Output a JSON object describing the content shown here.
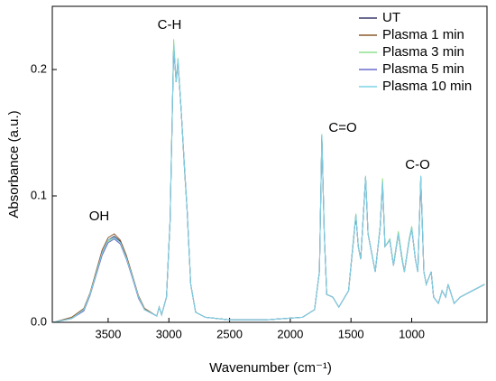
{
  "chart_data": {
    "type": "line",
    "xlabel": "Wavenumber (cm⁻¹)",
    "ylabel": "Absorbance (a.u.)",
    "annotations": [
      "OH",
      "C-H",
      "C=O",
      "C-O"
    ],
    "xlim": [
      3960,
      380
    ],
    "ylim": [
      0,
      0.25
    ],
    "xticks": [
      3500,
      3000,
      2500,
      2000,
      1500,
      1000
    ],
    "yticks": [
      {
        "value": 0,
        "label": "0.0"
      },
      0.1,
      0.2
    ],
    "legend": "upper right",
    "x": [
      3950,
      3800,
      3700,
      3650,
      3600,
      3550,
      3500,
      3450,
      3400,
      3350,
      3300,
      3250,
      3200,
      3100,
      3080,
      3060,
      3020,
      2990,
      2960,
      2940,
      2925,
      2900,
      2870,
      2850,
      2820,
      2780,
      2700,
      2500,
      2200,
      1900,
      1800,
      1760,
      1740,
      1720,
      1700,
      1650,
      1600,
      1520,
      1480,
      1460,
      1440,
      1420,
      1380,
      1360,
      1300,
      1260,
      1240,
      1220,
      1180,
      1150,
      1110,
      1080,
      1060,
      1020,
      1000,
      970,
      950,
      925,
      900,
      880,
      840,
      820,
      780,
      750,
      720,
      700,
      650,
      600,
      500,
      400
    ],
    "series": [
      {
        "name": "UT",
        "color": "#3b3b6b",
        "values": [
          0.0,
          0.003,
          0.01,
          0.022,
          0.038,
          0.055,
          0.065,
          0.068,
          0.064,
          0.052,
          0.036,
          0.02,
          0.01,
          0.005,
          0.012,
          0.006,
          0.02,
          0.08,
          0.218,
          0.19,
          0.208,
          0.17,
          0.12,
          0.09,
          0.03,
          0.008,
          0.004,
          0.002,
          0.002,
          0.004,
          0.01,
          0.04,
          0.148,
          0.07,
          0.022,
          0.02,
          0.012,
          0.025,
          0.065,
          0.085,
          0.06,
          0.05,
          0.115,
          0.07,
          0.04,
          0.075,
          0.11,
          0.06,
          0.065,
          0.045,
          0.07,
          0.05,
          0.04,
          0.065,
          0.075,
          0.05,
          0.04,
          0.115,
          0.04,
          0.03,
          0.04,
          0.02,
          0.015,
          0.025,
          0.02,
          0.03,
          0.015,
          0.02,
          0.025,
          0.03
        ]
      },
      {
        "name": "Plasma 1 min",
        "color": "#8b5a2b",
        "values": [
          0.0,
          0.004,
          0.011,
          0.023,
          0.04,
          0.057,
          0.067,
          0.07,
          0.065,
          0.053,
          0.037,
          0.021,
          0.011,
          0.005,
          0.012,
          0.006,
          0.02,
          0.08,
          0.22,
          0.19,
          0.207,
          0.17,
          0.118,
          0.09,
          0.03,
          0.008,
          0.004,
          0.002,
          0.002,
          0.004,
          0.01,
          0.04,
          0.147,
          0.07,
          0.022,
          0.02,
          0.012,
          0.025,
          0.064,
          0.085,
          0.06,
          0.05,
          0.114,
          0.07,
          0.04,
          0.075,
          0.112,
          0.06,
          0.065,
          0.045,
          0.07,
          0.05,
          0.04,
          0.066,
          0.075,
          0.05,
          0.04,
          0.114,
          0.04,
          0.03,
          0.04,
          0.02,
          0.015,
          0.025,
          0.02,
          0.03,
          0.015,
          0.02,
          0.025,
          0.03
        ]
      },
      {
        "name": "Plasma 3 min",
        "color": "#8ee08e",
        "values": [
          0.0,
          0.003,
          0.01,
          0.022,
          0.038,
          0.054,
          0.064,
          0.067,
          0.063,
          0.051,
          0.035,
          0.02,
          0.01,
          0.005,
          0.012,
          0.006,
          0.02,
          0.082,
          0.224,
          0.19,
          0.209,
          0.17,
          0.12,
          0.09,
          0.03,
          0.008,
          0.004,
          0.002,
          0.002,
          0.004,
          0.01,
          0.04,
          0.149,
          0.07,
          0.022,
          0.02,
          0.012,
          0.025,
          0.066,
          0.086,
          0.06,
          0.05,
          0.116,
          0.07,
          0.04,
          0.076,
          0.114,
          0.06,
          0.066,
          0.046,
          0.072,
          0.052,
          0.04,
          0.066,
          0.076,
          0.05,
          0.04,
          0.116,
          0.04,
          0.03,
          0.04,
          0.02,
          0.015,
          0.025,
          0.02,
          0.03,
          0.015,
          0.02,
          0.025,
          0.03
        ]
      },
      {
        "name": "Plasma 5 min",
        "color": "#6a6acd",
        "values": [
          0.0,
          0.003,
          0.009,
          0.021,
          0.037,
          0.053,
          0.063,
          0.066,
          0.062,
          0.05,
          0.035,
          0.019,
          0.01,
          0.005,
          0.012,
          0.006,
          0.02,
          0.08,
          0.219,
          0.19,
          0.206,
          0.17,
          0.12,
          0.09,
          0.03,
          0.008,
          0.004,
          0.002,
          0.002,
          0.004,
          0.01,
          0.04,
          0.146,
          0.07,
          0.022,
          0.02,
          0.012,
          0.025,
          0.065,
          0.084,
          0.06,
          0.05,
          0.115,
          0.07,
          0.04,
          0.075,
          0.11,
          0.06,
          0.065,
          0.045,
          0.07,
          0.05,
          0.04,
          0.065,
          0.074,
          0.05,
          0.04,
          0.115,
          0.04,
          0.03,
          0.04,
          0.02,
          0.015,
          0.025,
          0.02,
          0.03,
          0.015,
          0.02,
          0.025,
          0.03
        ]
      },
      {
        "name": "Plasma 10 min",
        "color": "#7fd4e6",
        "values": [
          0.0,
          0.003,
          0.01,
          0.022,
          0.038,
          0.055,
          0.065,
          0.067,
          0.063,
          0.051,
          0.036,
          0.02,
          0.01,
          0.005,
          0.012,
          0.006,
          0.02,
          0.08,
          0.22,
          0.19,
          0.208,
          0.17,
          0.12,
          0.09,
          0.03,
          0.008,
          0.004,
          0.002,
          0.002,
          0.004,
          0.01,
          0.04,
          0.148,
          0.07,
          0.022,
          0.02,
          0.012,
          0.025,
          0.065,
          0.085,
          0.06,
          0.05,
          0.115,
          0.07,
          0.04,
          0.075,
          0.111,
          0.06,
          0.065,
          0.045,
          0.07,
          0.05,
          0.04,
          0.065,
          0.075,
          0.05,
          0.04,
          0.116,
          0.04,
          0.03,
          0.04,
          0.02,
          0.015,
          0.025,
          0.02,
          0.03,
          0.015,
          0.02,
          0.025,
          0.03
        ]
      }
    ]
  }
}
